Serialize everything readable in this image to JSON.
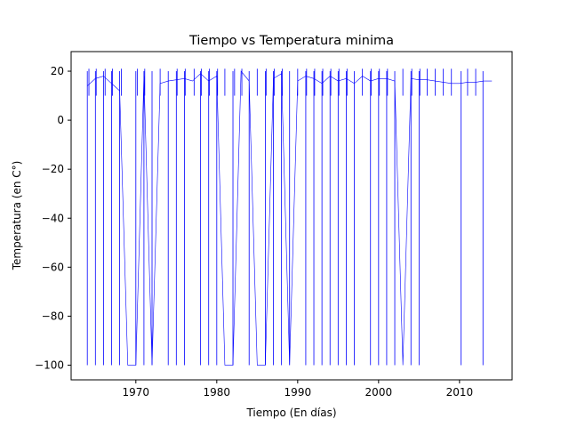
{
  "chart_data": {
    "type": "line",
    "title": "Tiempo vs Temperatura minima",
    "xlabel": "Tiempo (En días)",
    "ylabel": "Temperatura (en C°)",
    "xlim": [
      1962,
      2016.5
    ],
    "ylim": [
      -106,
      28
    ],
    "xticks": [
      1970,
      1980,
      1990,
      2000,
      2010
    ],
    "yticks": [
      -100,
      -80,
      -60,
      -40,
      -20,
      0,
      20
    ],
    "grid": false,
    "color": "#0000ff",
    "spikes_down": [
      1964,
      1965,
      1966,
      1967,
      1968,
      1970,
      1971,
      1972,
      1974,
      1975,
      1976,
      1978,
      1979,
      1980,
      1982,
      1984,
      1986,
      1987,
      1988,
      1989,
      1991,
      1992,
      1993,
      1994,
      1995,
      1996,
      1997,
      1999,
      2000,
      2001,
      2002,
      2004,
      2005,
      2010.2,
      2012.9
    ],
    "spikes_up": [
      1964.2,
      1965.1,
      1966.2,
      1967.1,
      1968.2,
      1970.2,
      1971.1,
      1973,
      1975.1,
      1976.1,
      1977.2,
      1978.1,
      1979.1,
      1980.1,
      1981,
      1982.2,
      1983.1,
      1985,
      1986.1,
      1987.1,
      1988.1,
      1990,
      1991.1,
      1992.1,
      1993.1,
      1994.1,
      1995.1,
      1996.1,
      1998,
      1999.1,
      2000.1,
      2001.1,
      2003,
      2004.1,
      2005.1,
      2006,
      2007,
      2008,
      2009,
      2011,
      2012
    ],
    "series": [
      {
        "values": [
          [
            1964,
            14
          ],
          [
            1965,
            17
          ],
          [
            1966,
            18
          ],
          [
            1967,
            15
          ],
          [
            1968,
            12
          ],
          [
            1969,
            -100
          ],
          [
            1970,
            -100
          ],
          [
            1971,
            18
          ],
          [
            1972,
            -100
          ],
          [
            1973,
            15
          ],
          [
            1974,
            16
          ],
          [
            1975,
            16.5
          ],
          [
            1976,
            17
          ],
          [
            1977,
            16
          ],
          [
            1978,
            19
          ],
          [
            1979,
            16
          ],
          [
            1980,
            18
          ],
          [
            1981,
            -100
          ],
          [
            1982,
            -100
          ],
          [
            1983,
            20
          ],
          [
            1984,
            16
          ],
          [
            1985,
            -100
          ],
          [
            1986,
            -100
          ],
          [
            1987,
            17
          ],
          [
            1988,
            19
          ],
          [
            1989,
            -100
          ],
          [
            1990,
            16
          ],
          [
            1991,
            18
          ],
          [
            1992,
            17
          ],
          [
            1993,
            15
          ],
          [
            1994,
            18
          ],
          [
            1995,
            16
          ],
          [
            1996,
            17
          ],
          [
            1997,
            15
          ],
          [
            1998,
            18
          ],
          [
            1999,
            16
          ],
          [
            2000,
            17
          ],
          [
            2001,
            17
          ],
          [
            2002,
            16
          ],
          [
            2003,
            -100
          ],
          [
            2004,
            17
          ],
          [
            2005,
            16.5
          ],
          [
            2006,
            16.5
          ],
          [
            2007,
            16
          ],
          [
            2008,
            15.5
          ],
          [
            2009,
            15
          ],
          [
            2010,
            15
          ],
          [
            2011,
            15.5
          ],
          [
            2012,
            15.5
          ],
          [
            2013,
            16
          ],
          [
            2014,
            16
          ]
        ]
      }
    ]
  }
}
